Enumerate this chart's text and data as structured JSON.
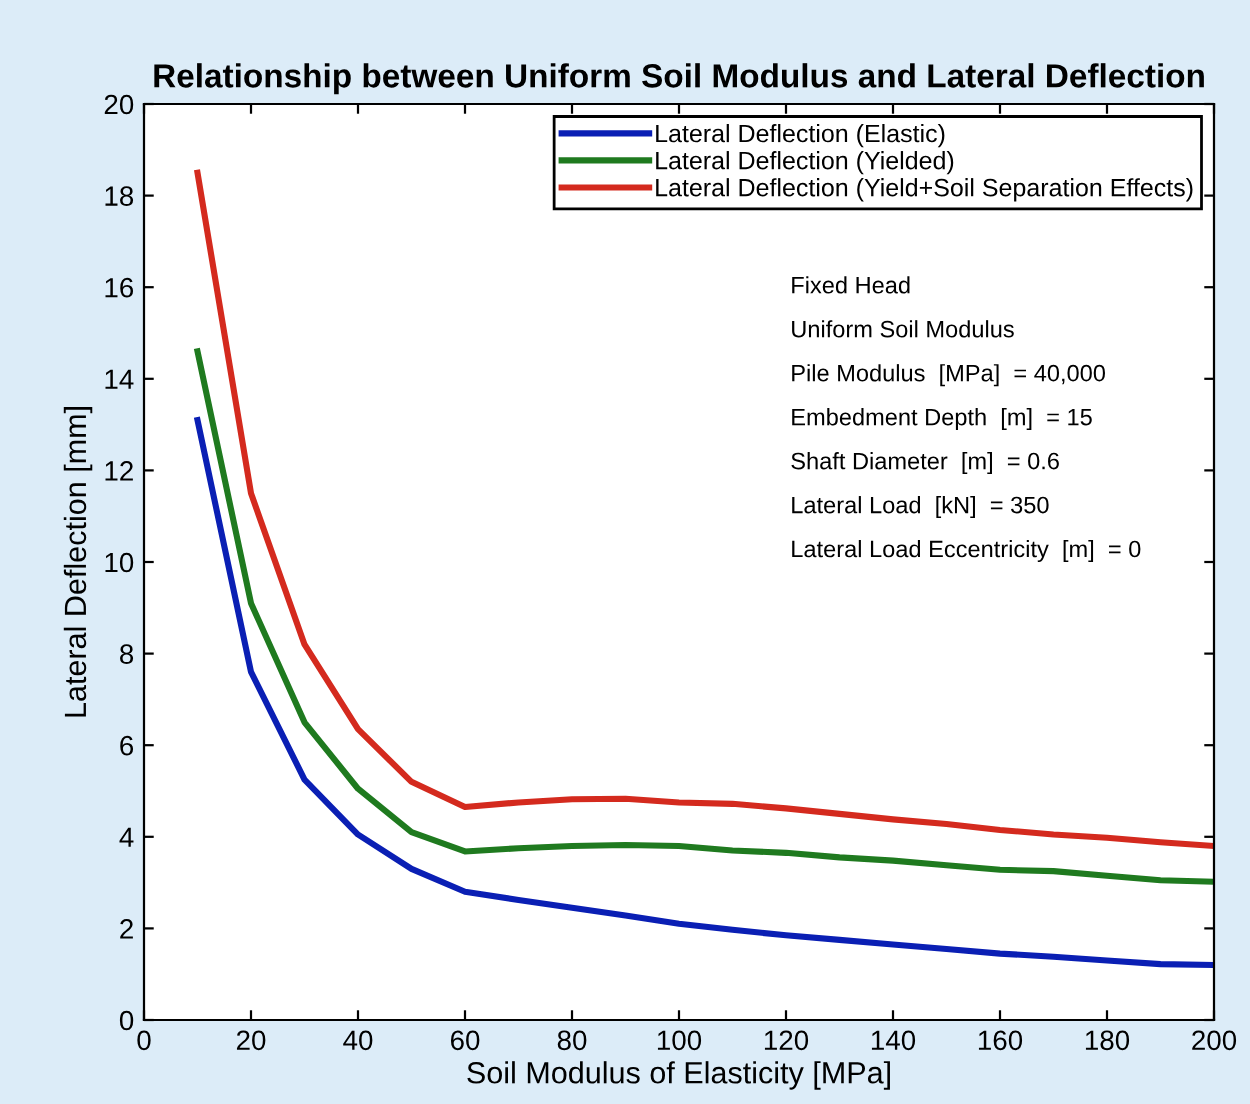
{
  "chart_data": {
    "type": "line",
    "title": "Relationship between Uniform Soil Modulus and Lateral Deflection",
    "xlabel": "Soil Modulus of Elasticity [MPa]",
    "ylabel": "Lateral Deflection [mm]",
    "x": [
      10,
      20,
      30,
      40,
      50,
      60,
      70,
      80,
      90,
      100,
      110,
      120,
      130,
      140,
      150,
      160,
      170,
      180,
      190,
      200
    ],
    "series": [
      {
        "name": "Lateral Deflection (Elastic)",
        "color": "#0a1fb4",
        "values": [
          13.1,
          7.6,
          5.25,
          4.05,
          3.3,
          2.8,
          2.62,
          2.45,
          2.28,
          2.1,
          1.97,
          1.85,
          1.75,
          1.65,
          1.55,
          1.45,
          1.38,
          1.3,
          1.22,
          1.2
        ]
      },
      {
        "name": "Lateral Deflection (Yielded)",
        "color": "#1f7a1f",
        "values": [
          14.6,
          9.1,
          6.5,
          5.05,
          4.1,
          3.68,
          3.75,
          3.8,
          3.82,
          3.8,
          3.7,
          3.65,
          3.55,
          3.48,
          3.38,
          3.28,
          3.25,
          3.15,
          3.05,
          3.02
        ]
      },
      {
        "name": "Lateral Deflection (Yield+Soil Separation Effects)",
        "color": "#d42a1e",
        "values": [
          18.5,
          11.5,
          8.2,
          6.35,
          5.2,
          4.65,
          4.75,
          4.82,
          4.83,
          4.75,
          4.72,
          4.62,
          4.5,
          4.38,
          4.28,
          4.15,
          4.05,
          3.98,
          3.88,
          3.8
        ]
      }
    ],
    "xlim": [
      0,
      200
    ],
    "xticks": [
      0,
      20,
      40,
      60,
      80,
      100,
      120,
      140,
      160,
      180,
      200
    ],
    "ylim": [
      0,
      20
    ],
    "yticks": [
      0,
      2,
      4,
      6,
      8,
      10,
      12,
      14,
      16,
      18,
      20
    ],
    "grid": false,
    "legend": "top right",
    "annotations": [
      "Fixed Head",
      "Uniform Soil Modulus",
      "Pile Modulus  [MPa]  = 40,000",
      "Embedment Depth  [m]  = 15",
      "Shaft Diameter  [m]  = 0.6",
      "Lateral Load  [kN]  = 350",
      "Lateral Load Eccentricity  [m]  = 0"
    ]
  }
}
